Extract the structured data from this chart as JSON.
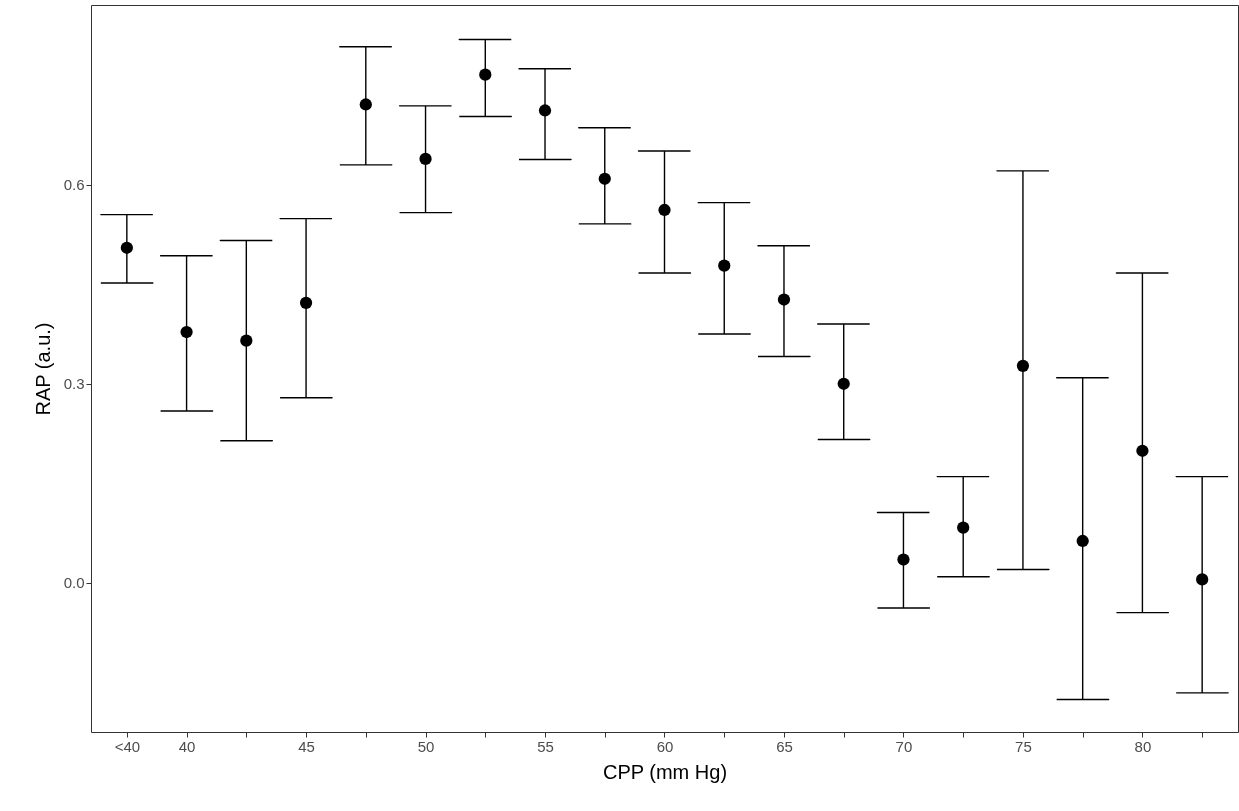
{
  "chart_data": {
    "type": "scatter",
    "xlabel": "CPP (mm Hg)",
    "ylabel": "RAP (a.u.)",
    "categories": [
      "<40",
      "40",
      null,
      "45",
      null,
      "50",
      null,
      "55",
      null,
      "60",
      null,
      "65",
      null,
      "70",
      null,
      "75",
      null,
      "80",
      null
    ],
    "values": [
      0.505,
      0.378,
      0.365,
      0.422,
      0.721,
      0.639,
      0.766,
      0.712,
      0.609,
      0.562,
      0.478,
      0.427,
      0.3,
      0.035,
      0.083,
      0.327,
      0.063,
      0.199,
      0.005
    ],
    "errors": [
      [
        0.452,
        0.555
      ],
      [
        0.259,
        0.493
      ],
      [
        0.214,
        0.516
      ],
      [
        0.279,
        0.549
      ],
      [
        0.63,
        0.808
      ],
      [
        0.558,
        0.719
      ],
      [
        0.703,
        0.819
      ],
      [
        0.638,
        0.775
      ],
      [
        0.541,
        0.686
      ],
      [
        0.467,
        0.651
      ],
      [
        0.375,
        0.573
      ],
      [
        0.341,
        0.508
      ],
      [
        0.216,
        0.39
      ],
      [
        -0.038,
        0.106
      ],
      [
        0.009,
        0.16
      ],
      [
        0.02,
        0.621
      ],
      [
        -0.176,
        0.309
      ],
      [
        -0.045,
        0.467
      ],
      [
        -0.166,
        0.16
      ]
    ],
    "color": "#000000",
    "marker": "circle",
    "grid": false,
    "ylim": [
      -0.225,
      0.871
    ],
    "yticks": [
      {
        "value": 0,
        "label": "0.0"
      },
      {
        "value": 0.3,
        "label": "0.3"
      },
      {
        "value": 0.6,
        "label": "0.6"
      }
    ]
  }
}
